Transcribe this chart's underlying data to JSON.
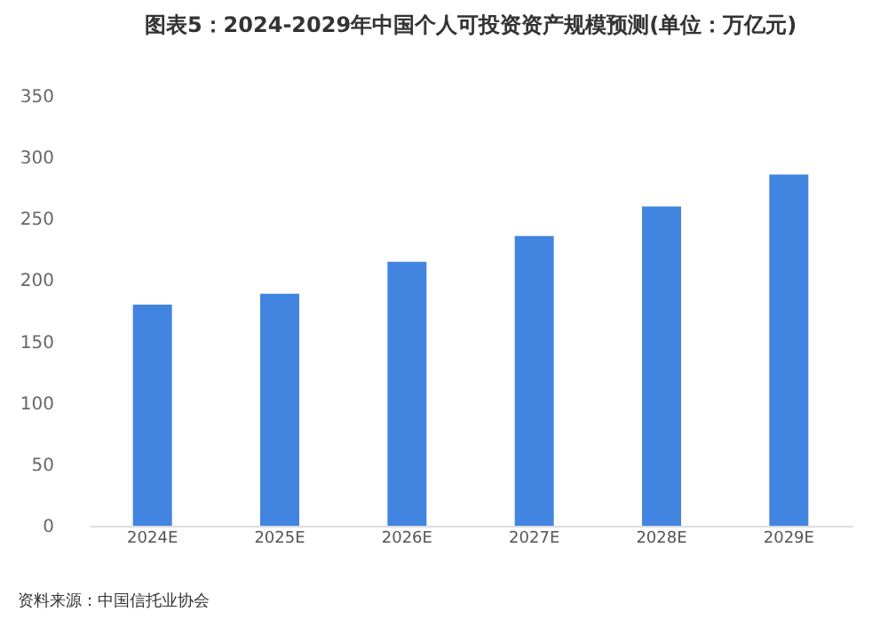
{
  "chart_data": {
    "type": "bar",
    "title": "图表5：2024-2029年中国个人可投资资产规模预测(单位：万亿元)",
    "categories": [
      "2024E",
      "2025E",
      "2026E",
      "2027E",
      "2028E",
      "2029E"
    ],
    "values": [
      180,
      189,
      215,
      236,
      260,
      286
    ],
    "color": "#4285e0",
    "ylim": [
      0,
      350
    ],
    "yticks": [
      0,
      50,
      100,
      150,
      200,
      250,
      300,
      350
    ],
    "grid": false,
    "annotations": [
      "资料来源：中国信托业协会"
    ]
  }
}
